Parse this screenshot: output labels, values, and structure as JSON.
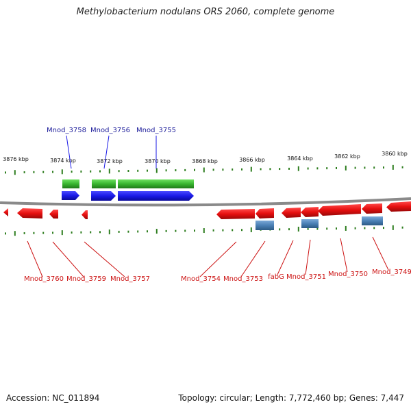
{
  "title": "Methylobacterium nodulans ORS 2060, complete genome",
  "footer": {
    "accession": "Accession: NC_011894",
    "topology": "Topology: circular; Length: 7,772,460 bp; Genes: 7,447"
  },
  "colors": {
    "backbone": "#8a8a8a",
    "tick": "#2d7d1e",
    "forward_gene": "#1a1ae6",
    "forward_cds_green": "#38b52e",
    "reverse_gene": "#e60f0f",
    "reverse_cds_blue": "#4a80b5",
    "label_forward": "#1a1a99",
    "label_reverse": "#cc1111"
  },
  "ruler": [
    {
      "label": "3876 kbp"
    },
    {
      "label": "3874 kbp"
    },
    {
      "label": "3872 kbp"
    },
    {
      "label": "3870 kbp"
    },
    {
      "label": "3868 kbp"
    },
    {
      "label": "3866 kbp"
    },
    {
      "label": "3864 kbp"
    },
    {
      "label": "3862 kbp"
    },
    {
      "label": "3860 kbp"
    }
  ],
  "forward_labels": [
    {
      "name": "Mnod_3758"
    },
    {
      "name": "Mnod_3756"
    },
    {
      "name": "Mnod_3755"
    }
  ],
  "reverse_labels": [
    {
      "name": "Mnod_3760"
    },
    {
      "name": "Mnod_3759"
    },
    {
      "name": "Mnod_3757"
    },
    {
      "name": "Mnod_3754"
    },
    {
      "name": "Mnod_3753"
    },
    {
      "name": "fabG"
    },
    {
      "name": "Mnod_3751"
    },
    {
      "name": "Mnod_3750"
    },
    {
      "name": "Mnod_3749"
    }
  ]
}
